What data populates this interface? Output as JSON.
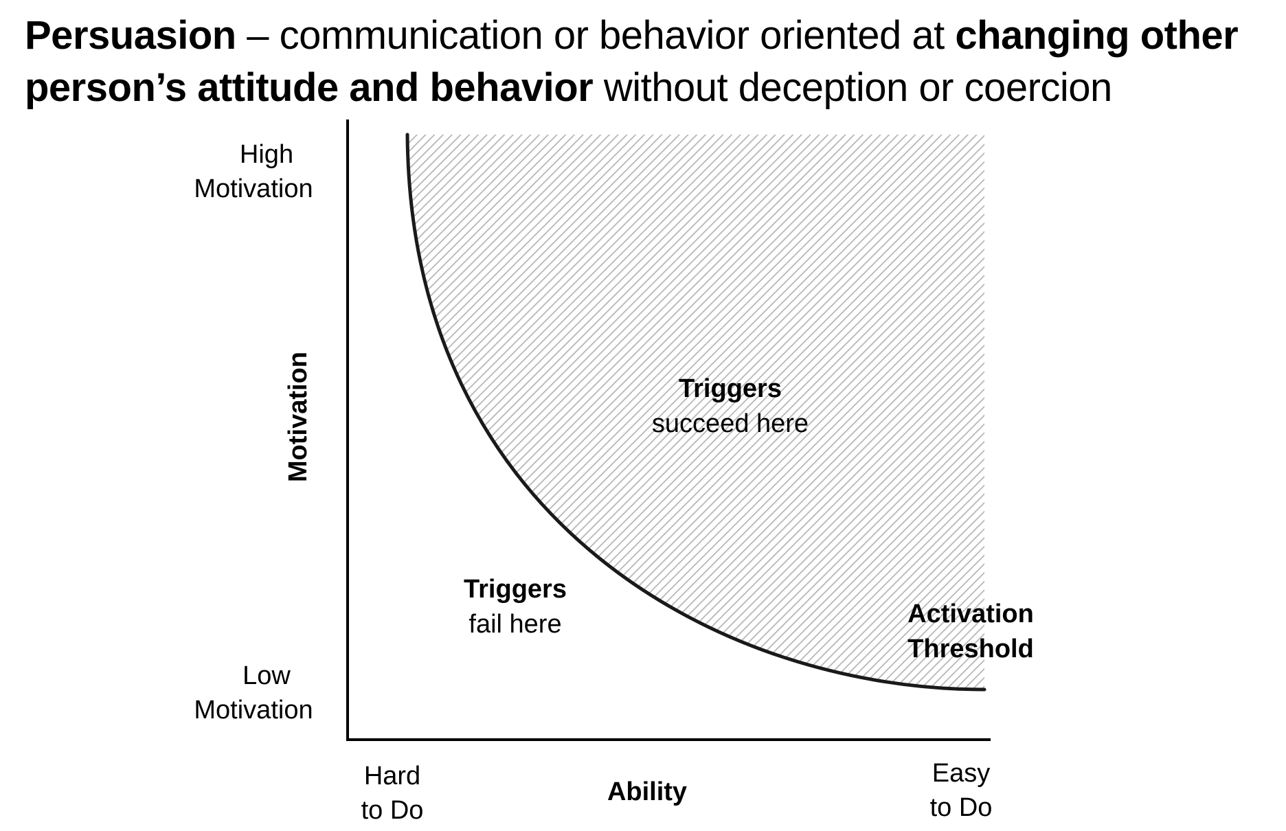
{
  "headline": {
    "term": "Persuasion",
    "part1": " – communication or behavior oriented at ",
    "emphasis": "changing other person’s attitude and behavior",
    "part2": " without deception or coercion"
  },
  "diagram": {
    "y_axis": {
      "title": "Motivation",
      "top_label": [
        "High",
        "Motivation"
      ],
      "bottom_label": [
        "Low",
        "Motivation"
      ]
    },
    "x_axis": {
      "title": "Ability",
      "left_label": [
        "Hard",
        "to Do"
      ],
      "right_label": [
        "Easy",
        "to Do"
      ]
    },
    "regions": {
      "success": {
        "bold": "Triggers",
        "text": "succeed here"
      },
      "failure": {
        "bold": "Triggers",
        "text": "fail here"
      }
    },
    "curve_label": [
      "Activation",
      "Threshold"
    ],
    "colors": {
      "curve": "#1a1a1a",
      "hatch": "#b5b5b5",
      "axis": "#000000"
    }
  }
}
